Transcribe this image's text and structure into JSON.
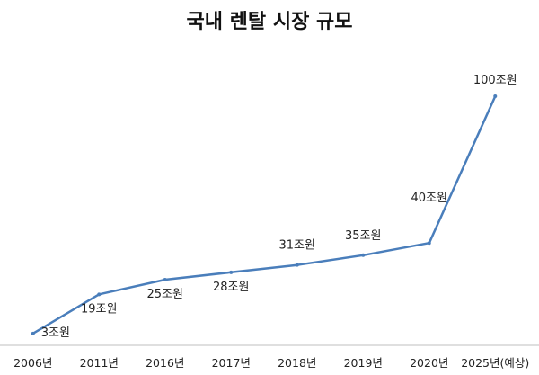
{
  "chart_data": {
    "type": "line",
    "title": "국내 렌탈 시장 규모",
    "categories": [
      "2006년",
      "2011년",
      "2016년",
      "2017년",
      "2018년",
      "2019년",
      "2020년",
      "2025년(예상)"
    ],
    "series": [
      {
        "values": [
          3,
          19,
          25,
          28,
          31,
          35,
          40,
          100
        ],
        "data_labels": [
          "3조원",
          "19조원",
          "25조원",
          "28조원",
          "31조원",
          "35조원",
          "40조원",
          "100조원"
        ],
        "color": "#4a7ebb"
      }
    ],
    "xlabel": "",
    "ylabel": "",
    "ylim": [
      0,
      100
    ],
    "grid": false,
    "legend": "none"
  }
}
